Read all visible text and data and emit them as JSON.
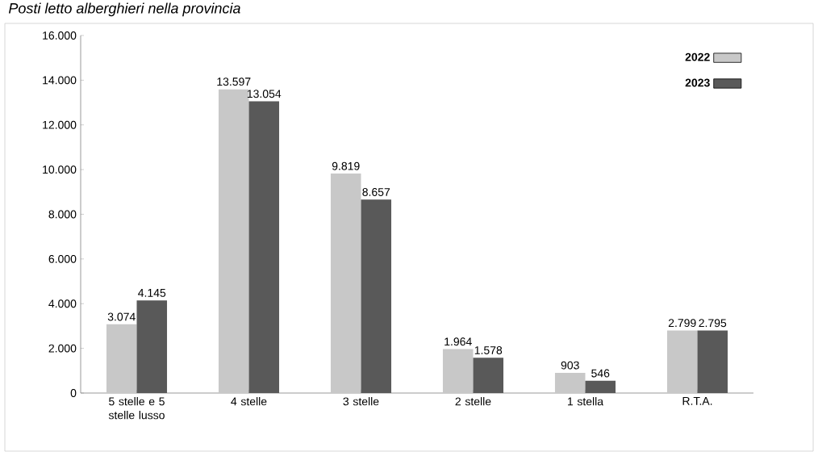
{
  "chart_data": {
    "type": "bar",
    "title": "Posti letto alberghieri nella provincia",
    "categories": [
      "5 stelle e 5 stelle lusso",
      "4 stelle",
      "3 stelle",
      "2 stelle",
      "1 stella",
      "R.T.A."
    ],
    "series": [
      {
        "name": "2022",
        "color": "#c8c8c8",
        "values": [
          3074,
          13597,
          9819,
          1964,
          903,
          2799
        ],
        "value_labels": [
          "3.074",
          "13.597",
          "9.819",
          "1.964",
          "903",
          "2.799"
        ]
      },
      {
        "name": "2023",
        "color": "#595959",
        "values": [
          4145,
          13054,
          8657,
          1578,
          546,
          2795
        ],
        "value_labels": [
          "4.145",
          "13.054",
          "8.657",
          "1.578",
          "546",
          "2.795"
        ]
      }
    ],
    "ylim": [
      0,
      16000
    ],
    "yticks": [
      0,
      {
        "value": 2000,
        "label": "2.000"
      },
      {
        "value": 4000,
        "label": "4.000"
      },
      {
        "value": 6000,
        "label": "6.000"
      },
      {
        "value": 8000,
        "label": "8.000"
      },
      {
        "value": 10000,
        "label": "10.000"
      },
      {
        "value": 12000,
        "label": "12.000"
      },
      {
        "value": 14000,
        "label": "14.000"
      },
      {
        "value": 16000,
        "label": "16.000"
      }
    ],
    "grid": false,
    "legend": "top right"
  }
}
